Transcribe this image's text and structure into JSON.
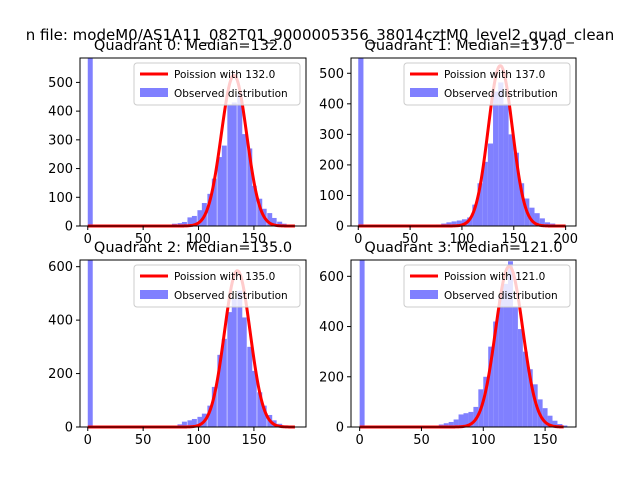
{
  "figure": {
    "suptitle": "n file: modeM0/AS1A11_082T01_9000005356_38014cztM0_level2_quad_clean"
  },
  "colors": {
    "poisson_line": "#ff0000",
    "histogram": "#8080ff",
    "axes": "#000000"
  },
  "chart_data": [
    {
      "type": "bar",
      "title": "Quadrant 0: Median=132.0",
      "median": 132.0,
      "xlim": [
        -7,
        197
      ],
      "ylim": [
        0,
        585
      ],
      "xticks": [
        0,
        50,
        100,
        150
      ],
      "yticks": [
        0,
        100,
        200,
        300,
        400,
        500
      ],
      "legend": {
        "position": "upper-right",
        "line_label": "Poission with 132.0",
        "bar_label": "Observed distribution"
      },
      "histogram": {
        "bin_width": 4.5,
        "bins": [
          [
            0,
            585
          ],
          [
            67,
            5
          ],
          [
            72,
            3
          ],
          [
            76,
            8
          ],
          [
            81,
            10
          ],
          [
            85,
            14
          ],
          [
            90,
            30
          ],
          [
            94,
            35
          ],
          [
            99,
            55
          ],
          [
            103,
            80
          ],
          [
            108,
            112
          ],
          [
            112,
            165
          ],
          [
            117,
            240
          ],
          [
            121,
            280
          ],
          [
            126,
            420
          ],
          [
            130,
            430
          ],
          [
            135,
            460
          ],
          [
            139,
            320
          ],
          [
            144,
            270
          ],
          [
            148,
            140
          ],
          [
            153,
            95
          ],
          [
            157,
            60
          ],
          [
            162,
            45
          ],
          [
            166,
            28
          ],
          [
            171,
            15
          ],
          [
            175,
            8
          ],
          [
            180,
            4
          ],
          [
            184,
            2
          ]
        ]
      },
      "poisson_curve": {
        "mean": 132.0,
        "peak": 525
      }
    },
    {
      "type": "bar",
      "title": "Quadrant 1: Median=137.0",
      "median": 137.0,
      "xlim": [
        -7,
        210
      ],
      "ylim": [
        0,
        550
      ],
      "xticks": [
        0,
        50,
        100,
        150,
        200
      ],
      "yticks": [
        0,
        100,
        200,
        300,
        400,
        500
      ],
      "legend": {
        "position": "upper-right",
        "line_label": "Poission with 137.0",
        "bar_label": "Observed distribution"
      },
      "histogram": {
        "bin_width": 5,
        "bins": [
          [
            0,
            550
          ],
          [
            70,
            3
          ],
          [
            75,
            5
          ],
          [
            80,
            8
          ],
          [
            85,
            12
          ],
          [
            90,
            15
          ],
          [
            95,
            18
          ],
          [
            100,
            22
          ],
          [
            105,
            28
          ],
          [
            110,
            70
          ],
          [
            115,
            140
          ],
          [
            120,
            210
          ],
          [
            125,
            270
          ],
          [
            130,
            440
          ],
          [
            135,
            470
          ],
          [
            140,
            400
          ],
          [
            145,
            300
          ],
          [
            150,
            240
          ],
          [
            155,
            140
          ],
          [
            160,
            90
          ],
          [
            165,
            60
          ],
          [
            170,
            42
          ],
          [
            175,
            25
          ],
          [
            180,
            12
          ],
          [
            185,
            8
          ],
          [
            190,
            4
          ]
        ]
      },
      "poisson_curve": {
        "mean": 137.0,
        "peak": 525
      }
    },
    {
      "type": "bar",
      "title": "Quadrant 2: Median=135.0",
      "median": 135.0,
      "xlim": [
        -7,
        197
      ],
      "ylim": [
        0,
        625
      ],
      "xticks": [
        0,
        50,
        100,
        150
      ],
      "yticks": [
        0,
        200,
        400,
        600
      ],
      "legend": {
        "position": "upper-right",
        "line_label": "Poission with 135.0",
        "bar_label": "Observed distribution"
      },
      "histogram": {
        "bin_width": 4.5,
        "bins": [
          [
            0,
            625
          ],
          [
            81,
            10
          ],
          [
            85,
            20
          ],
          [
            90,
            25
          ],
          [
            94,
            30
          ],
          [
            99,
            38
          ],
          [
            103,
            50
          ],
          [
            108,
            80
          ],
          [
            112,
            150
          ],
          [
            117,
            270
          ],
          [
            121,
            330
          ],
          [
            126,
            430
          ],
          [
            130,
            480
          ],
          [
            135,
            510
          ],
          [
            139,
            410
          ],
          [
            144,
            300
          ],
          [
            148,
            210
          ],
          [
            153,
            130
          ],
          [
            157,
            80
          ],
          [
            162,
            45
          ],
          [
            166,
            25
          ],
          [
            171,
            12
          ],
          [
            175,
            6
          ],
          [
            180,
            3
          ]
        ]
      },
      "poisson_curve": {
        "mean": 135.0,
        "peak": 585
      }
    },
    {
      "type": "bar",
      "title": "Quadrant 3: Median=121.0",
      "median": 121.0,
      "xlim": [
        -7,
        175
      ],
      "ylim": [
        0,
        665
      ],
      "xticks": [
        0,
        50,
        100,
        150
      ],
      "yticks": [
        0,
        200,
        400,
        600
      ],
      "legend": {
        "position": "upper-right",
        "line_label": "Poission with 121.0",
        "bar_label": "Observed distribution"
      },
      "histogram": {
        "bin_width": 4,
        "bins": [
          [
            0,
            665
          ],
          [
            64,
            10
          ],
          [
            68,
            15
          ],
          [
            72,
            20
          ],
          [
            76,
            30
          ],
          [
            80,
            50
          ],
          [
            84,
            55
          ],
          [
            88,
            60
          ],
          [
            92,
            80
          ],
          [
            96,
            150
          ],
          [
            100,
            200
          ],
          [
            104,
            320
          ],
          [
            108,
            420
          ],
          [
            112,
            520
          ],
          [
            116,
            570
          ],
          [
            120,
            660
          ],
          [
            124,
            480
          ],
          [
            128,
            390
          ],
          [
            132,
            300
          ],
          [
            136,
            230
          ],
          [
            140,
            170
          ],
          [
            144,
            110
          ],
          [
            148,
            75
          ],
          [
            152,
            45
          ],
          [
            156,
            25
          ],
          [
            160,
            12
          ],
          [
            164,
            6
          ]
        ]
      },
      "poisson_curve": {
        "mean": 121.0,
        "peak": 640
      }
    }
  ]
}
